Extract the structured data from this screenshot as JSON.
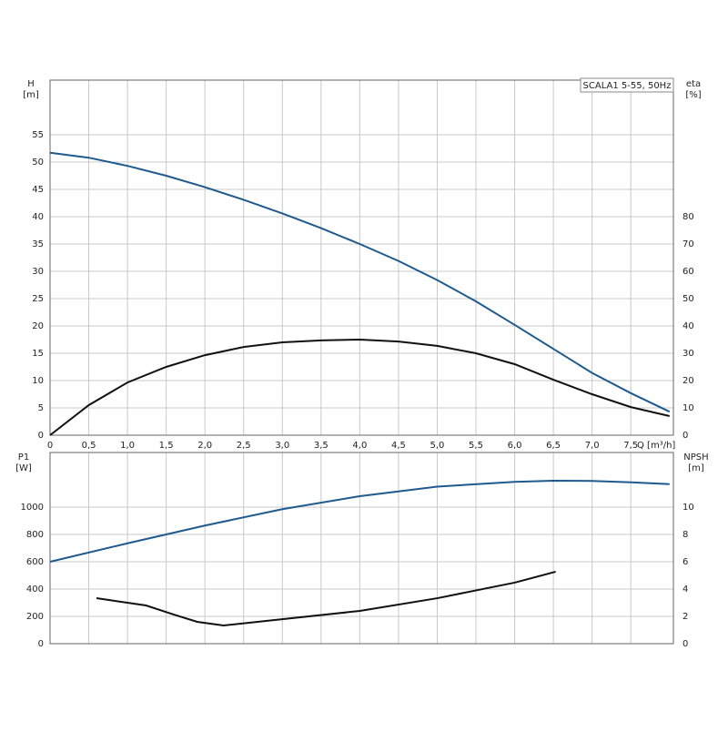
{
  "chart_data": [
    {
      "type": "line",
      "title": "SCALA1 5-55, 50Hz",
      "ylabel": "H",
      "yunit": "[m]",
      "y2label": "eta",
      "y2unit": "[%]",
      "xlabel": "Q [m³/h]",
      "xlim": [
        0,
        8.05
      ],
      "xticks": [
        0,
        {
          "value": 0.5,
          "label": "0,5"
        },
        {
          "value": 1,
          "label": "1,0"
        },
        {
          "value": 1.5,
          "label": "1,5"
        },
        {
          "value": 2,
          "label": "2,0"
        },
        {
          "value": 2.5,
          "label": "2,5"
        },
        {
          "value": 3,
          "label": "3,0"
        },
        {
          "value": 3.5,
          "label": "3,5"
        },
        {
          "value": 4,
          "label": "4,0"
        },
        {
          "value": 4.5,
          "label": "4,5"
        },
        {
          "value": 5,
          "label": "5,0"
        },
        {
          "value": 5.5,
          "label": "5,5"
        },
        {
          "value": 6,
          "label": "6,0"
        },
        {
          "value": 6.5,
          "label": "6,5"
        },
        {
          "value": 7,
          "label": "7,0"
        },
        {
          "value": 7.5,
          "label": "7,5"
        }
      ],
      "ylim": [
        0,
        65
      ],
      "yticks": [
        0,
        5,
        10,
        15,
        20,
        25,
        30,
        35,
        40,
        45,
        50,
        55
      ],
      "y2lim": [
        0,
        130
      ],
      "y2ticks": [
        0,
        10,
        20,
        30,
        40,
        50,
        60,
        70,
        80
      ],
      "grid": true,
      "series": [
        {
          "color": "#1f5a8f",
          "x": [
            0,
            0.5,
            1,
            1.5,
            2,
            2.5,
            3,
            3.5,
            4,
            4.5,
            5,
            5.5,
            6,
            6.5,
            7,
            7.5,
            8
          ],
          "values": [
            51.7,
            50.8,
            49.3,
            47.5,
            45.4,
            43.1,
            40.6,
            37.9,
            35.0,
            31.9,
            28.4,
            24.5,
            20.2,
            15.8,
            11.4,
            7.7,
            4.3
          ]
        },
        {
          "color": "#111111",
          "axis": "y2",
          "x": [
            0,
            0.5,
            1,
            1.5,
            2,
            2.5,
            3,
            3.5,
            4,
            4.5,
            5,
            5.5,
            6,
            6.5,
            7,
            7.5,
            8
          ],
          "values": [
            0,
            11,
            19.3,
            25,
            29.3,
            32.3,
            34,
            34.7,
            35,
            34.3,
            32.7,
            30,
            26,
            20.3,
            15,
            10.3,
            7
          ]
        }
      ]
    },
    {
      "type": "line",
      "ylabel": "P1",
      "yunit": "[W]",
      "y2label": "NPSH",
      "y2unit": "[m]",
      "xlim": [
        0,
        8.05
      ],
      "ylim": [
        0,
        1400
      ],
      "yticks": [
        0,
        200,
        400,
        600,
        800,
        1000
      ],
      "y2lim": [
        0,
        14
      ],
      "y2ticks": [
        0,
        2,
        4,
        6,
        8,
        10
      ],
      "grid": true,
      "series": [
        {
          "color": "#1f5a8f",
          "x": [
            0,
            1,
            2,
            3,
            4,
            5,
            6,
            6.5,
            7,
            7.5,
            8
          ],
          "values": [
            600,
            735,
            865,
            985,
            1080,
            1150,
            1185,
            1193,
            1192,
            1182,
            1168
          ]
        },
        {
          "color": "#111111",
          "axis": "y2",
          "x": [
            0.6,
            1.24,
            1.6,
            1.9,
            2.24,
            2.9,
            4,
            5,
            6,
            6.53
          ],
          "values": [
            3.33,
            2.8,
            2.13,
            1.6,
            1.33,
            1.73,
            2.4,
            3.33,
            4.47,
            5.27
          ]
        }
      ]
    }
  ]
}
